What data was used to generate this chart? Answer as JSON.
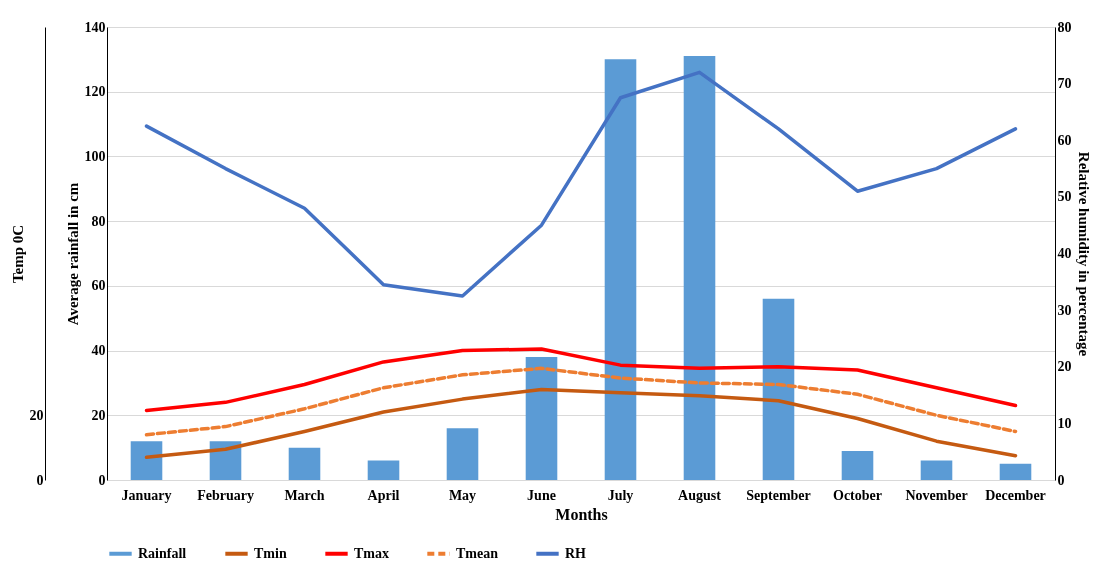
{
  "chart_data": {
    "type": "bar",
    "xlabel": "Months",
    "ylabel": "Average rainfall in cm",
    "y2label": "Relative humidity in percentage",
    "y3label": "Temp 0C",
    "categories": [
      "January",
      "February",
      "March",
      "April",
      "May",
      "June",
      "July",
      "August",
      "September",
      "October",
      "November",
      "December"
    ],
    "series": [
      {
        "name": "Rainfall",
        "color": "#5b9bd5",
        "values": [
          12,
          12,
          10,
          6,
          16,
          38,
          130,
          131,
          56,
          9,
          6,
          5
        ]
      },
      {
        "name": "Tmin",
        "type": "line",
        "color": "#c55a11",
        "line_style": "solid",
        "values": [
          7,
          9.5,
          15,
          21,
          25,
          28,
          27,
          26,
          24.5,
          19,
          12,
          7.5
        ]
      },
      {
        "name": "Tmax",
        "type": "line",
        "color": "#ff0000",
        "line_style": "solid",
        "values": [
          21.5,
          24,
          29.5,
          36.5,
          40,
          40.5,
          35.5,
          34.5,
          35,
          34,
          28.5,
          23
        ]
      },
      {
        "name": "Tmean",
        "type": "line",
        "color": "#ed7d31",
        "line_style": "dashed",
        "values": [
          14,
          16.5,
          22,
          28.5,
          32.5,
          34.5,
          31.5,
          30,
          29.5,
          26.5,
          20,
          15
        ]
      },
      {
        "name": "RH",
        "type": "line",
        "axis": "y2",
        "color": "#4472c4",
        "line_style": "solid",
        "values": [
          62.5,
          55,
          48,
          34.5,
          32.5,
          45,
          67.5,
          72,
          62,
          51,
          55,
          62
        ]
      }
    ],
    "ylim": [
      0,
      140
    ],
    "yticks": [
      0,
      20,
      40,
      60,
      80,
      100,
      120,
      140
    ],
    "y2lim": [
      0,
      80
    ],
    "y2ticks": [
      0,
      10,
      20,
      30,
      40,
      50,
      60,
      70,
      80
    ],
    "y3lim": [
      0,
      140
    ],
    "y3ticks": [
      0,
      20
    ],
    "grid": "y",
    "legend": "bottom"
  }
}
